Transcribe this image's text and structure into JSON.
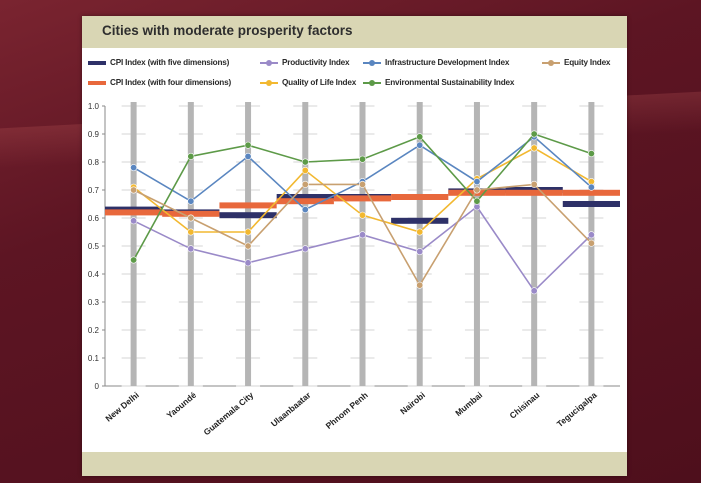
{
  "chart_data": {
    "type": "line",
    "title": "Cities with moderate prosperity factors",
    "categories": [
      "New Delhi",
      "Yaoundé",
      "Guatemala City",
      "Ulaanbaatar",
      "Phnom Penh",
      "Nairobi",
      "Mumbai",
      "Chisinau",
      "Tegucigalpa"
    ],
    "ylim": [
      0,
      1.0
    ],
    "yticks": [
      "0",
      "0.1",
      "0.2",
      "0.3",
      "0.4",
      "0.5",
      "0.6",
      "0.7",
      "0.8",
      "0.9",
      "1.0"
    ],
    "grid": false,
    "legend_position": "top",
    "series": [
      {
        "name": "CPI Index (with five dimensions)",
        "kind": "bar-level",
        "color": "#2e3168",
        "values": [
          0.63,
          0.62,
          0.61,
          0.675,
          0.675,
          0.59,
          0.695,
          0.7,
          0.65
        ]
      },
      {
        "name": "CPI Index (with four dimensions)",
        "kind": "bar-level",
        "color": "#e8683c",
        "values": [
          0.62,
          0.615,
          0.645,
          0.66,
          0.67,
          0.675,
          0.69,
          0.69,
          0.69
        ]
      },
      {
        "name": "Productivity Index",
        "kind": "line",
        "color": "#9a8ac8",
        "values": [
          0.59,
          0.49,
          0.44,
          0.49,
          0.54,
          0.48,
          0.64,
          0.34,
          0.54
        ]
      },
      {
        "name": "Quality of Life Index",
        "kind": "line",
        "color": "#f2b830",
        "values": [
          0.71,
          0.55,
          0.55,
          0.77,
          0.61,
          0.55,
          0.74,
          0.85,
          0.73
        ]
      },
      {
        "name": "Infrastructure Development Index",
        "kind": "line",
        "color": "#5a86c0",
        "values": [
          0.78,
          0.66,
          0.82,
          0.63,
          0.73,
          0.86,
          0.73,
          0.89,
          0.71
        ]
      },
      {
        "name": "Environmental Sustainability Index",
        "kind": "line",
        "color": "#5d9a48",
        "values": [
          0.45,
          0.82,
          0.86,
          0.8,
          0.81,
          0.89,
          0.66,
          0.9,
          0.83
        ]
      },
      {
        "name": "Equity Index",
        "kind": "line",
        "color": "#c8a070",
        "values": [
          0.7,
          0.6,
          0.5,
          0.72,
          0.72,
          0.36,
          0.7,
          0.72,
          0.51
        ]
      }
    ]
  },
  "colors": {
    "axis_line": "#8a8a8a",
    "city_bar": "#b5b5b5",
    "tick_text": "#333333"
  }
}
